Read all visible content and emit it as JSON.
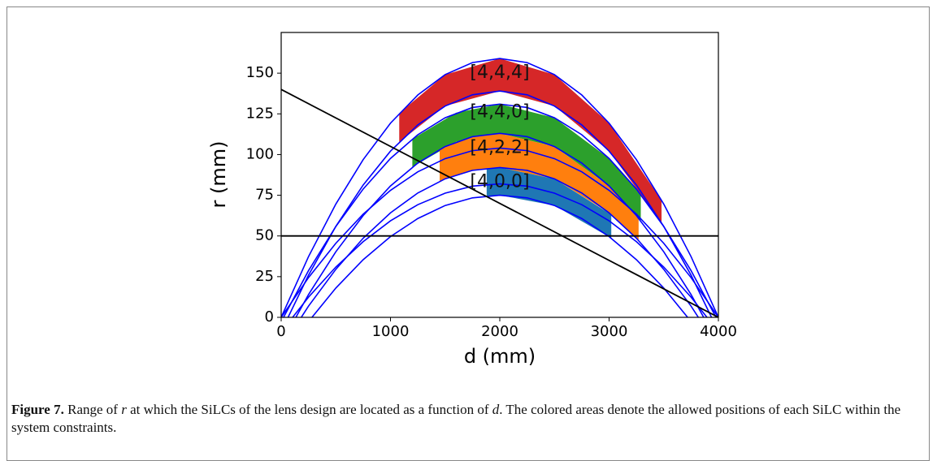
{
  "chart_data": {
    "type": "line",
    "xlabel": "d (mm)",
    "ylabel": "r (mm)",
    "xlim": [
      0,
      4000
    ],
    "ylim": [
      0,
      175
    ],
    "xticks": [
      0,
      1000,
      2000,
      3000,
      4000
    ],
    "yticks": [
      0,
      25,
      50,
      75,
      100,
      125,
      150
    ],
    "x": [
      0,
      250,
      500,
      750,
      1000,
      1250,
      1500,
      1750,
      2000,
      2250,
      2500,
      2750,
      3000,
      3250,
      3500,
      3750,
      4000
    ],
    "series": [
      {
        "color": "#0000ff",
        "values": [
          0,
          37.3,
          69.6,
          96.9,
          119.3,
          136.6,
          149.1,
          156.5,
          159,
          156.5,
          149.1,
          136.6,
          119.3,
          96.9,
          69.6,
          37.3,
          0
        ]
      },
      {
        "color": "#0000ff",
        "values": [
          -8.7,
          25.9,
          55.9,
          81.3,
          102.1,
          118.2,
          129.8,
          136.7,
          139,
          136.7,
          129.8,
          118.2,
          102.1,
          81.3,
          55.9,
          25.9,
          -8.7
        ]
      },
      {
        "color": "#0000ff",
        "values": [
          -2.7,
          28.7,
          55.8,
          78.8,
          97.6,
          112.2,
          122.6,
          128.9,
          131,
          128.9,
          122.6,
          112.2,
          97.6,
          78.8,
          55.8,
          28.7,
          -2.7
        ]
      },
      {
        "color": "#0000ff",
        "values": [
          -16.3,
          14.0,
          40.3,
          62.5,
          80.7,
          94.8,
          104.9,
          111.0,
          113,
          111.0,
          104.9,
          94.8,
          80.7,
          62.5,
          40.3,
          14.0,
          -16.3
        ]
      },
      {
        "color": "#0000ff",
        "values": [
          0,
          24.4,
          45.5,
          63.4,
          78,
          89.4,
          97.5,
          102.4,
          104,
          102.4,
          97.5,
          89.4,
          78,
          63.4,
          45.5,
          24.4,
          0
        ]
      },
      {
        "color": "#0000ff",
        "values": [
          -19.1,
          6.9,
          29.5,
          48.6,
          64.2,
          76.4,
          85.1,
          90.3,
          92,
          90.3,
          85.1,
          76.4,
          64.2,
          48.6,
          29.5,
          6.9,
          -19.1
        ]
      },
      {
        "color": "#0000ff",
        "values": [
          -8.9,
          12.4,
          30.9,
          46.5,
          59.3,
          69.2,
          76.3,
          80.6,
          82,
          80.6,
          76.3,
          69.2,
          59.3,
          46.5,
          30.9,
          12.4,
          -8.9
        ]
      },
      {
        "color": "#0000ff",
        "values": [
          -26.4,
          -2.6,
          18.0,
          35.4,
          49.6,
          60.7,
          68.7,
          73.4,
          75,
          73.4,
          68.7,
          60.7,
          49.6,
          35.4,
          18.0,
          -2.6,
          -26.4
        ]
      }
    ],
    "references": [
      {
        "color": "#000000",
        "x": [
          0,
          4000
        ],
        "values": [
          140,
          0
        ]
      },
      {
        "color": "#000000",
        "x": [
          0,
          4000
        ],
        "values": [
          50,
          50
        ]
      }
    ],
    "bands": [
      {
        "color": "#d62728",
        "x": [
          1080,
          1500,
          2000,
          2500,
          3000,
          3480
        ],
        "upper": [
          125.4,
          149.1,
          159,
          149.1,
          119.3,
          71.9
        ],
        "lower": [
          107.7,
          129.8,
          139,
          129.8,
          102.1,
          58.1
        ]
      },
      {
        "color": "#2ca02c",
        "x": [
          1200,
          1600,
          2000,
          2500,
          3000,
          3290
        ],
        "upper": [
          109.6,
          125.7,
          131,
          122.6,
          97.6,
          75.4
        ],
        "lower": [
          92.3,
          107.8,
          113,
          104.9,
          80.7,
          59.2
        ]
      },
      {
        "color": "#ff7f0e",
        "x": [
          1450,
          1700,
          2000,
          2500,
          3000,
          3270
        ],
        "upper": [
          103.2,
          110.1,
          113,
          104.9,
          80.7,
          60.9
        ],
        "lower": [
          83.6,
          89.5,
          92,
          85.1,
          64.2,
          47.2
        ]
      },
      {
        "color": "#1f77b4",
        "x": [
          1880,
          2000,
          2500,
          3020
        ],
        "upper": [
          91.6,
          92,
          85.1,
          63.1
        ],
        "lower": [
          74.6,
          75,
          68.7,
          48.6
        ]
      }
    ],
    "annotations": [
      {
        "text": "[4,4,4]",
        "x": 2000,
        "y": 150
      },
      {
        "text": "[4,4,0]",
        "x": 2000,
        "y": 126
      },
      {
        "text": "[4,2,2]",
        "x": 2000,
        "y": 104
      },
      {
        "text": "[4,0,0]",
        "x": 2000,
        "y": 83
      }
    ]
  },
  "caption": {
    "label": "Figure 7.",
    "parts": [
      {
        "text": " Range of "
      },
      {
        "text": "r",
        "italic": true
      },
      {
        "text": " at which the SiLCs of the lens design are located as a function of "
      },
      {
        "text": "d",
        "italic": true
      },
      {
        "text": ". The colored areas denote the allowed positions of each SiLC within the system constraints."
      }
    ]
  }
}
